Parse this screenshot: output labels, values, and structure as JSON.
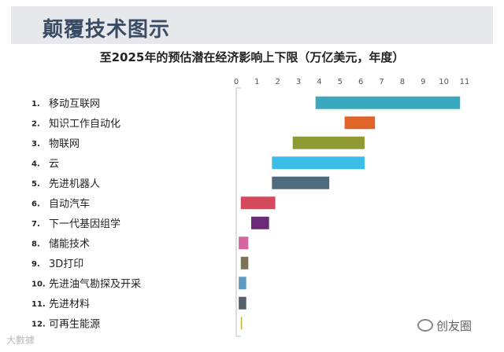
{
  "header": {
    "title": "颠覆技术图示"
  },
  "chart_data": {
    "type": "bar",
    "orientation": "horizontal-floating",
    "title": "至2025年的预估潜在经济影响上下限（万亿美元，年度）",
    "xlim": [
      0,
      11
    ],
    "x_ticks": [
      0,
      1,
      2,
      3,
      4,
      5,
      6,
      7,
      8,
      9,
      10,
      11
    ],
    "legend": "none",
    "categories": [
      {
        "num": "1.",
        "label": "移动互联网",
        "low": 3.8,
        "high": 10.8,
        "color": "#3aa8bd"
      },
      {
        "num": "2.",
        "label": "知识工作自动化",
        "low": 5.2,
        "high": 6.7,
        "color": "#e06427"
      },
      {
        "num": "3.",
        "label": "物联网",
        "low": 2.7,
        "high": 6.2,
        "color": "#8f9a35"
      },
      {
        "num": "4.",
        "label": "云",
        "low": 1.7,
        "high": 6.2,
        "color": "#3cbde8"
      },
      {
        "num": "5.",
        "label": "先进机器人",
        "low": 1.7,
        "high": 4.5,
        "color": "#4e6b7d"
      },
      {
        "num": "6.",
        "label": "自动汽车",
        "low": 0.2,
        "high": 1.9,
        "color": "#d54a5a"
      },
      {
        "num": "7.",
        "label": "下一代基因组学",
        "low": 0.7,
        "high": 1.6,
        "color": "#6b2a78"
      },
      {
        "num": "8.",
        "label": "储能技术",
        "low": 0.1,
        "high": 0.6,
        "color": "#d566a0"
      },
      {
        "num": "9.",
        "label": "3D打印",
        "low": 0.2,
        "high": 0.6,
        "color": "#7c7358"
      },
      {
        "num": "10.",
        "label": "先进油气勘探及开采",
        "low": 0.1,
        "high": 0.5,
        "color": "#5f9cc1"
      },
      {
        "num": "11.",
        "label": "先进材料",
        "low": 0.1,
        "high": 0.5,
        "color": "#56606a"
      },
      {
        "num": "12.",
        "label": "可再生能源",
        "low": 0.2,
        "high": 0.3,
        "color": "#c8b531"
      }
    ]
  },
  "footer": {
    "left_text": "大數據",
    "right_text": "创友圈"
  }
}
